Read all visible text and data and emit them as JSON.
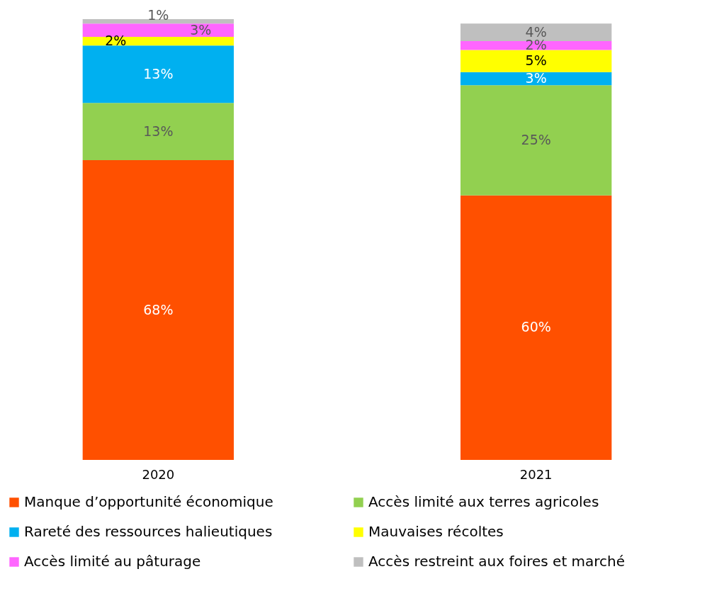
{
  "chart_data": {
    "type": "bar",
    "stacked": true,
    "legend": "bottom",
    "grid": false,
    "categories": [
      "2020",
      "2021"
    ],
    "series": [
      {
        "name": "Manque d’opportunité économique",
        "color": "#ff5000",
        "values": [
          68,
          60
        ],
        "value_labels": [
          "68%",
          "60%"
        ]
      },
      {
        "name": "Accès limité aux terres agricoles",
        "color": "#92d050",
        "values": [
          13,
          25
        ],
        "value_labels": [
          "13%",
          "25%"
        ]
      },
      {
        "name": "Rareté des ressources halieutiques",
        "color": "#00b0f0",
        "values": [
          13,
          3
        ],
        "value_labels": [
          "13%",
          "3%"
        ]
      },
      {
        "name": "Mauvaises récoltes",
        "color": "#ffff00",
        "values": [
          2,
          5
        ],
        "value_labels": [
          "2%",
          "5%"
        ]
      },
      {
        "name": "Accès limité au pâturage",
        "color": "#ff66ff",
        "values": [
          3,
          2
        ],
        "value_labels": [
          "3%",
          "2%"
        ]
      },
      {
        "name": "Accès restreint aux foires et marché",
        "color": "#bfbfbf",
        "values": [
          1,
          4
        ],
        "value_labels": [
          "1%",
          "4%"
        ]
      }
    ]
  }
}
